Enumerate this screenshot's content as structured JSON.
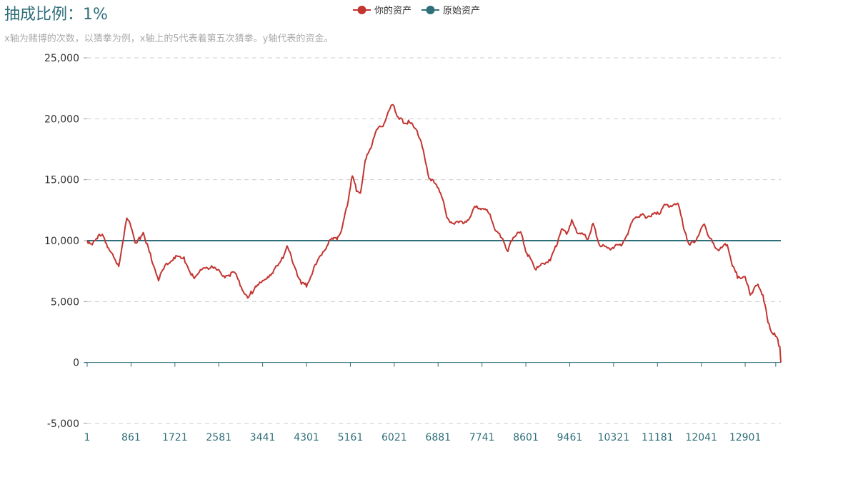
{
  "header": {
    "title": "抽成比例：1%",
    "subtitle": "x轴为赌博的次数，以猜拳为例，x轴上的5代表着第五次猜拳。y轴代表的资金。"
  },
  "chart_data": {
    "type": "line",
    "title": "抽成比例：1%",
    "subtitle": "x轴为赌博的次数，以猜拳为例，x轴上的5代表着第五次猜拳。y轴代表的资金。",
    "legend_position": "top-center",
    "grid": "horizontal-dashed",
    "x_tick_labels": [
      "1",
      "861",
      "1721",
      "2581",
      "3441",
      "4301",
      "5161",
      "6021",
      "6881",
      "7741",
      "8601",
      "9461",
      "10321",
      "11181",
      "12041",
      "12901"
    ],
    "xlim": [
      1,
      13600
    ],
    "ylim": [
      -5000,
      25000
    ],
    "y_ticks": [
      -5000,
      0,
      5000,
      10000,
      15000,
      20000,
      25000
    ],
    "y_tick_labels": [
      "-5,000",
      "0",
      "5,000",
      "10,000",
      "15,000",
      "20,000",
      "25,000"
    ],
    "series": [
      {
        "name": "你的资产",
        "color": "#c23531",
        "points": [
          [
            1,
            10000
          ],
          [
            120,
            9700
          ],
          [
            300,
            10700
          ],
          [
            420,
            9300
          ],
          [
            620,
            8000
          ],
          [
            780,
            11800
          ],
          [
            860,
            11200
          ],
          [
            960,
            9700
          ],
          [
            1100,
            10700
          ],
          [
            1200,
            9300
          ],
          [
            1400,
            6800
          ],
          [
            1540,
            8000
          ],
          [
            1720,
            8700
          ],
          [
            1900,
            8500
          ],
          [
            2100,
            6800
          ],
          [
            2300,
            7900
          ],
          [
            2500,
            7700
          ],
          [
            2700,
            7100
          ],
          [
            2900,
            7300
          ],
          [
            3000,
            6400
          ],
          [
            3150,
            5200
          ],
          [
            3300,
            6300
          ],
          [
            3440,
            6600
          ],
          [
            3600,
            7300
          ],
          [
            3800,
            8200
          ],
          [
            3920,
            9700
          ],
          [
            4000,
            8600
          ],
          [
            4200,
            6500
          ],
          [
            4300,
            6300
          ],
          [
            4450,
            7700
          ],
          [
            4620,
            9100
          ],
          [
            4780,
            10000
          ],
          [
            4900,
            10200
          ],
          [
            5000,
            11000
          ],
          [
            5100,
            13000
          ],
          [
            5200,
            15300
          ],
          [
            5280,
            14200
          ],
          [
            5360,
            13800
          ],
          [
            5450,
            16700
          ],
          [
            5550,
            17400
          ],
          [
            5650,
            19000
          ],
          [
            5800,
            19400
          ],
          [
            5900,
            20500
          ],
          [
            6000,
            21300
          ],
          [
            6100,
            20000
          ],
          [
            6200,
            19800
          ],
          [
            6300,
            19700
          ],
          [
            6450,
            19300
          ],
          [
            6550,
            18000
          ],
          [
            6700,
            15300
          ],
          [
            6850,
            14400
          ],
          [
            6950,
            13800
          ],
          [
            7050,
            11800
          ],
          [
            7200,
            11400
          ],
          [
            7350,
            11500
          ],
          [
            7500,
            11800
          ],
          [
            7620,
            12900
          ],
          [
            7740,
            12600
          ],
          [
            7900,
            12300
          ],
          [
            8000,
            10800
          ],
          [
            8150,
            10300
          ],
          [
            8250,
            9000
          ],
          [
            8350,
            10400
          ],
          [
            8500,
            10600
          ],
          [
            8600,
            9200
          ],
          [
            8700,
            8400
          ],
          [
            8800,
            7700
          ],
          [
            8950,
            8100
          ],
          [
            9100,
            8600
          ],
          [
            9200,
            9700
          ],
          [
            9300,
            10900
          ],
          [
            9400,
            10600
          ],
          [
            9500,
            11600
          ],
          [
            9600,
            10800
          ],
          [
            9700,
            10500
          ],
          [
            9820,
            10200
          ],
          [
            9920,
            11300
          ],
          [
            10050,
            9700
          ],
          [
            10200,
            9300
          ],
          [
            10320,
            9500
          ],
          [
            10450,
            9600
          ],
          [
            10600,
            10600
          ],
          [
            10720,
            11900
          ],
          [
            10850,
            12100
          ],
          [
            10950,
            12000
          ],
          [
            11100,
            12100
          ],
          [
            11200,
            12200
          ],
          [
            11300,
            12800
          ],
          [
            11420,
            12900
          ],
          [
            11520,
            12900
          ],
          [
            11600,
            13000
          ],
          [
            11700,
            10800
          ],
          [
            11800,
            9700
          ],
          [
            11900,
            9800
          ],
          [
            12000,
            10600
          ],
          [
            12100,
            11400
          ],
          [
            12200,
            10200
          ],
          [
            12300,
            9600
          ],
          [
            12400,
            9200
          ],
          [
            12550,
            9800
          ],
          [
            12650,
            7900
          ],
          [
            12750,
            7100
          ],
          [
            12900,
            6900
          ],
          [
            13000,
            5700
          ],
          [
            13150,
            6300
          ],
          [
            13250,
            5600
          ],
          [
            13350,
            3200
          ],
          [
            13450,
            2400
          ],
          [
            13540,
            1800
          ],
          [
            13580,
            1200
          ],
          [
            13600,
            0
          ]
        ]
      },
      {
        "name": "原始资产",
        "color": "#2f6f7a",
        "points": [
          [
            1,
            10000
          ],
          [
            13600,
            10000
          ]
        ]
      }
    ]
  }
}
